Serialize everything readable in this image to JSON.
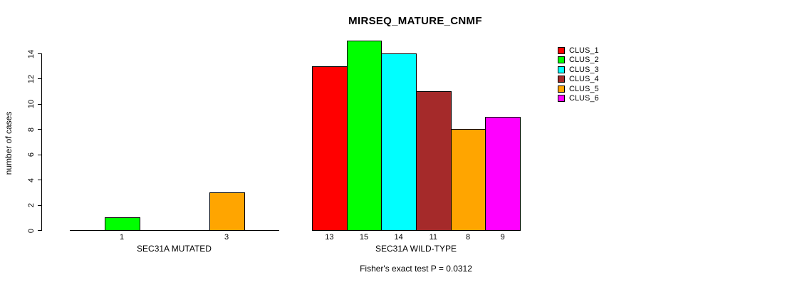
{
  "chart_data": {
    "type": "bar",
    "title": "MIRSEQ_MATURE_CNMF",
    "ylabel": "number of cases",
    "ylim": [
      0,
      14
    ],
    "yticks": [
      0,
      2,
      4,
      6,
      8,
      10,
      12,
      14
    ],
    "grid": false,
    "categories": [
      "CLUS_1",
      "CLUS_2",
      "CLUS_3",
      "CLUS_4",
      "CLUS_5",
      "CLUS_6"
    ],
    "series_colors": [
      "#FF0000",
      "#00FF00",
      "#00FFFF",
      "#A52A2A",
      "#FFA500",
      "#FF00FF"
    ],
    "groups": [
      {
        "label": "SEC31A MUTATED",
        "values": [
          0,
          1,
          0,
          0,
          3,
          0
        ],
        "bar_labels": [
          "",
          "1",
          "",
          "",
          "3",
          ""
        ]
      },
      {
        "label": "SEC31A WILD-TYPE",
        "values": [
          13,
          15,
          14,
          11,
          8,
          9
        ],
        "bar_labels": [
          "13",
          "15",
          "14",
          "11",
          "8",
          "9"
        ]
      }
    ],
    "legend": {
      "position": "right",
      "entries": [
        "CLUS_1",
        "CLUS_2",
        "CLUS_3",
        "CLUS_4",
        "CLUS_5",
        "CLUS_6"
      ]
    },
    "annotation": "Fisher's exact test P = 0.0312",
    "axis_color": "#000000",
    "background_color": "#FFFFFF"
  }
}
